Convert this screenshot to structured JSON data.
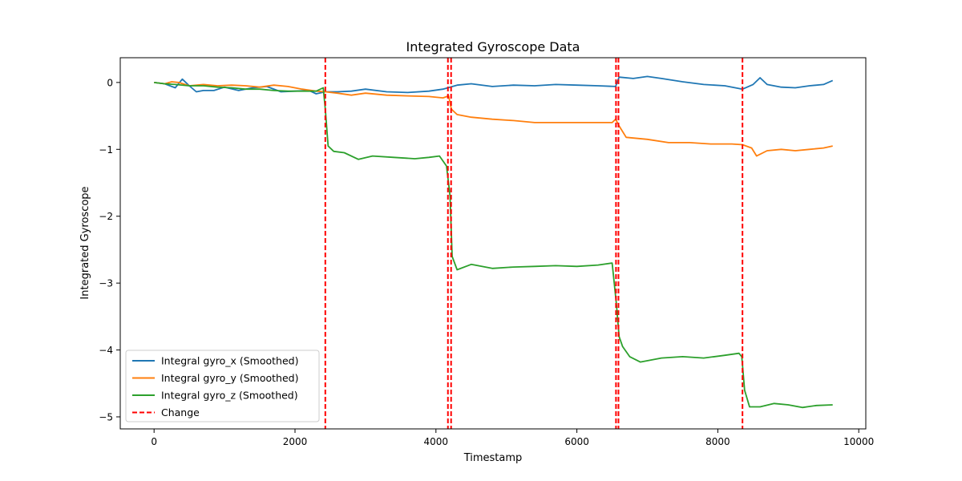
{
  "chart_data": {
    "type": "line",
    "title": "Integrated Gyroscope Data",
    "xlabel": "Timestamp",
    "ylabel": "Integrated Gyroscope",
    "xlim": [
      -480,
      10100
    ],
    "ylim": [
      -5.18,
      0.37
    ],
    "xticks": [
      0,
      2000,
      4000,
      6000,
      8000,
      10000
    ],
    "xtick_labels": [
      "0",
      "2000",
      "4000",
      "6000",
      "8000",
      "10000"
    ],
    "yticks": [
      0,
      -1,
      -2,
      -3,
      -4,
      -5
    ],
    "ytick_labels": [
      "0",
      "−1",
      "−2",
      "−3",
      "−4",
      "−5"
    ],
    "grid": false,
    "legend_position": "lower-left",
    "series": [
      {
        "name": "Integral gyro_x (Smoothed)",
        "color": "#1f77b4",
        "x": [
          0,
          150,
          300,
          400,
          500,
          600,
          700,
          850,
          1000,
          1200,
          1400,
          1600,
          1800,
          2000,
          2200,
          2300,
          2430,
          2600,
          2800,
          3000,
          3300,
          3600,
          3900,
          4100,
          4200,
          4300,
          4500,
          4800,
          5100,
          5400,
          5700,
          6000,
          6300,
          6550,
          6600,
          6800,
          7000,
          7200,
          7500,
          7800,
          8100,
          8350,
          8500,
          8600,
          8700,
          8900,
          9100,
          9300,
          9500,
          9630
        ],
        "y": [
          0.0,
          -0.02,
          -0.08,
          0.05,
          -0.05,
          -0.14,
          -0.12,
          -0.12,
          -0.07,
          -0.12,
          -0.08,
          -0.06,
          -0.14,
          -0.13,
          -0.12,
          -0.17,
          -0.14,
          -0.14,
          -0.13,
          -0.1,
          -0.14,
          -0.15,
          -0.13,
          -0.1,
          -0.07,
          -0.04,
          -0.02,
          -0.06,
          -0.04,
          -0.05,
          -0.03,
          -0.04,
          -0.05,
          -0.06,
          0.08,
          0.06,
          0.09,
          0.06,
          0.01,
          -0.03,
          -0.05,
          -0.1,
          -0.03,
          0.07,
          -0.03,
          -0.07,
          -0.08,
          -0.05,
          -0.03,
          0.03
        ]
      },
      {
        "name": "Integral gyro_y (Smoothed)",
        "color": "#ff7f0e",
        "x": [
          0,
          150,
          250,
          350,
          500,
          700,
          900,
          1100,
          1300,
          1500,
          1700,
          1900,
          2100,
          2300,
          2430,
          2600,
          2800,
          3000,
          3300,
          3600,
          3900,
          4100,
          4180,
          4220,
          4300,
          4500,
          4800,
          5100,
          5400,
          5700,
          6000,
          6300,
          6500,
          6550,
          6600,
          6700,
          7000,
          7300,
          7600,
          7900,
          8200,
          8350,
          8480,
          8550,
          8700,
          8900,
          9100,
          9300,
          9500,
          9630
        ],
        "y": [
          0.0,
          -0.02,
          0.01,
          0.0,
          -0.05,
          -0.03,
          -0.05,
          -0.04,
          -0.05,
          -0.07,
          -0.04,
          -0.06,
          -0.1,
          -0.13,
          -0.14,
          -0.16,
          -0.19,
          -0.16,
          -0.19,
          -0.2,
          -0.21,
          -0.23,
          -0.2,
          -0.4,
          -0.48,
          -0.52,
          -0.55,
          -0.57,
          -0.6,
          -0.6,
          -0.6,
          -0.6,
          -0.6,
          -0.55,
          -0.65,
          -0.82,
          -0.85,
          -0.9,
          -0.9,
          -0.92,
          -0.92,
          -0.93,
          -0.98,
          -1.1,
          -1.02,
          -1.0,
          -1.02,
          -1.0,
          -0.98,
          -0.95
        ]
      },
      {
        "name": "Integral gyro_z (Smoothed)",
        "color": "#2ca02c",
        "x": [
          0,
          150,
          300,
          500,
          700,
          900,
          1100,
          1300,
          1500,
          1700,
          1900,
          2100,
          2300,
          2400,
          2430,
          2470,
          2550,
          2700,
          2900,
          3100,
          3400,
          3700,
          3900,
          4050,
          4150,
          4200,
          4230,
          4300,
          4500,
          4800,
          5100,
          5400,
          5700,
          6000,
          6300,
          6500,
          6560,
          6600,
          6650,
          6750,
          6900,
          7200,
          7500,
          7800,
          8100,
          8300,
          8340,
          8380,
          8450,
          8600,
          8800,
          9000,
          9200,
          9400,
          9630
        ],
        "y": [
          0.0,
          -0.02,
          -0.03,
          -0.05,
          -0.05,
          -0.07,
          -0.08,
          -0.1,
          -0.1,
          -0.12,
          -0.13,
          -0.13,
          -0.13,
          -0.08,
          -0.4,
          -0.95,
          -1.03,
          -1.05,
          -1.15,
          -1.1,
          -1.12,
          -1.14,
          -1.12,
          -1.1,
          -1.25,
          -1.7,
          -2.6,
          -2.8,
          -2.72,
          -2.78,
          -2.76,
          -2.75,
          -2.74,
          -2.75,
          -2.73,
          -2.7,
          -3.3,
          -3.8,
          -3.95,
          -4.1,
          -4.18,
          -4.12,
          -4.1,
          -4.12,
          -4.08,
          -4.05,
          -4.1,
          -4.6,
          -4.85,
          -4.85,
          -4.8,
          -4.82,
          -4.86,
          -4.83,
          -4.82
        ]
      }
    ],
    "change_points": {
      "name": "Change",
      "color": "#ff0000",
      "x": [
        2430,
        4170,
        4215,
        6555,
        6590,
        8350
      ]
    }
  }
}
